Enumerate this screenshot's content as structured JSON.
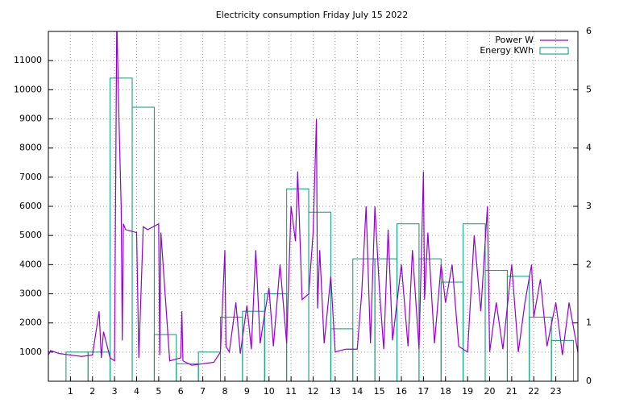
{
  "chart_data": {
    "type": "line-boxes",
    "title": "Electricity consumption Friday July 15 2022",
    "xlim": [
      0,
      24
    ],
    "xticks": [
      1,
      2,
      3,
      4,
      5,
      6,
      7,
      8,
      9,
      10,
      11,
      12,
      13,
      14,
      15,
      16,
      17,
      18,
      19,
      20,
      21,
      22,
      23
    ],
    "ylim": [
      0,
      12000
    ],
    "yticks": [
      1000,
      2000,
      3000,
      4000,
      5000,
      6000,
      7000,
      8000,
      9000,
      10000,
      11000
    ],
    "y2lim": [
      0,
      6
    ],
    "y2ticks": [
      0,
      1,
      2,
      3,
      4,
      5,
      6
    ],
    "grid": true,
    "legend": "top-right",
    "series": [
      {
        "name": "Power W",
        "type": "line",
        "color": "#9400d3",
        "x": [
          0,
          0.1,
          0.5,
          1,
          1.5,
          2,
          2.3,
          2.4,
          2.5,
          2.8,
          3.0,
          3.1,
          3.2,
          3.3,
          3.35,
          3.4,
          3.5,
          4,
          4.1,
          4.3,
          4.5,
          5,
          5.05,
          5.1,
          5.5,
          6,
          6.05,
          6.1,
          6.5,
          7,
          7.5,
          7.8,
          8,
          8.05,
          8.2,
          8.5,
          8.7,
          9,
          9.2,
          9.4,
          9.6,
          9.8,
          10,
          10.2,
          10.5,
          10.8,
          11,
          11.2,
          11.3,
          11.5,
          11.8,
          12,
          12.15,
          12.2,
          12.3,
          12.5,
          12.8,
          13,
          13.2,
          13.5,
          14,
          14.2,
          14.4,
          14.6,
          14.8,
          15,
          15.2,
          15.4,
          15.6,
          15.8,
          16,
          16.3,
          16.5,
          16.8,
          17,
          17.05,
          17.2,
          17.5,
          17.8,
          18,
          18.3,
          18.6,
          19,
          19.3,
          19.6,
          19.9,
          20,
          20.3,
          20.6,
          21,
          21.3,
          21.6,
          21.9,
          22,
          22.3,
          22.6,
          23,
          23.3,
          23.6,
          24
        ],
        "values": [
          900,
          1050,
          950,
          900,
          850,
          900,
          2400,
          800,
          1700,
          800,
          700,
          12500,
          9000,
          6000,
          1400,
          5400,
          5200,
          5100,
          800,
          5300,
          5200,
          5400,
          900,
          5100,
          700,
          800,
          2400,
          700,
          550,
          600,
          650,
          1000,
          4500,
          1200,
          1000,
          2700,
          950,
          2600,
          1100,
          4500,
          1300,
          2300,
          3200,
          1200,
          4000,
          1300,
          6000,
          4800,
          7200,
          2800,
          3000,
          5100,
          9000,
          2500,
          4500,
          1300,
          3600,
          1000,
          1050,
          1100,
          1100,
          3000,
          6000,
          1300,
          6000,
          3200,
          1100,
          5200,
          1400,
          2700,
          4000,
          1200,
          4500,
          1100,
          7200,
          2800,
          5100,
          1300,
          4000,
          2700,
          4000,
          1200,
          1000,
          5000,
          2400,
          6000,
          1000,
          2700,
          1100,
          4000,
          1000,
          2700,
          4000,
          2200,
          3500,
          1200,
          2700,
          900,
          2700,
          1000
        ]
      },
      {
        "name": "Energy KWh",
        "type": "boxes",
        "color": "#009e73",
        "axis": "y2",
        "x": [
          1.3,
          2.3,
          3.3,
          4.3,
          5.3,
          6.3,
          7.3,
          8.3,
          9.3,
          10.3,
          11.3,
          12.3,
          13.3,
          14.3,
          15.3,
          16.3,
          17.3,
          18.3,
          19.3,
          20.3,
          21.3,
          22.3,
          23.3
        ],
        "values": [
          0.5,
          0.5,
          5.2,
          4.7,
          0.8,
          0.3,
          0.5,
          1.1,
          1.2,
          1.5,
          3.3,
          2.9,
          0.9,
          2.1,
          2.1,
          2.7,
          2.1,
          1.7,
          2.7,
          1.9,
          1.8,
          1.1,
          0.7
        ]
      }
    ]
  }
}
